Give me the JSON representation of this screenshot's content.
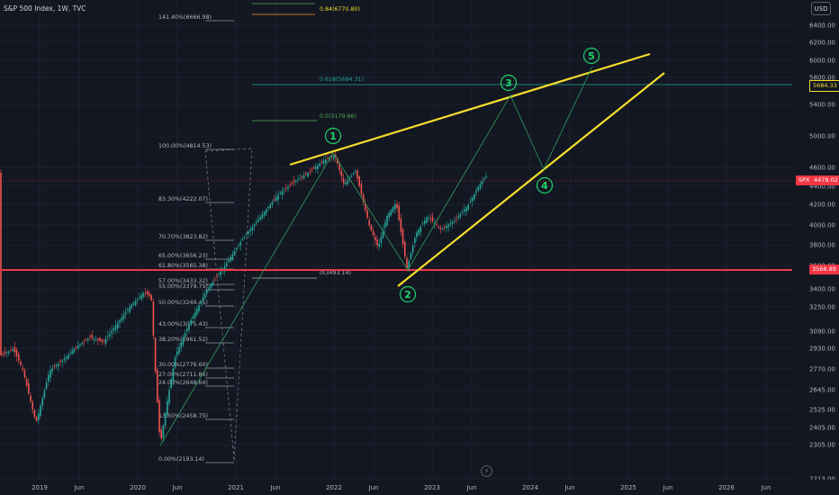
{
  "symbol": "S&P 500 Index, 1W, TVC",
  "currency": "USD",
  "replay_icon": "lightning-icon",
  "price_axis": [
    "6400.00",
    "6200.00",
    "6000.00",
    "5800.00",
    "5600.00",
    "5400.00",
    "5000.00",
    "4600.00",
    "4400.00",
    "4200.00",
    "4000.00",
    "3800.00",
    "3600.00",
    "3400.00",
    "3250.00",
    "3090.00",
    "2930.00",
    "2770.00",
    "2645.00",
    "2525.00",
    "2405.00",
    "2305.00",
    "2213.00"
  ],
  "time_axis": [
    "2019",
    "Jun",
    "2020",
    "Jun",
    "2021",
    "Jun",
    "2022",
    "Jun",
    "2023",
    "Jun",
    "2024",
    "Jun",
    "2025",
    "Jun",
    "2026",
    "Jun"
  ],
  "tags": {
    "fib_0618": "5684.33",
    "spx_label": "SPX",
    "spx_price": "4478.02",
    "hline_price": "3566.89"
  },
  "fib_upper": {
    "l0618": "0.618(5684.31)",
    "l05": "0.5(5179.66)",
    "l084": "0.84(6770.80)",
    "l0": "0(3493.14)"
  },
  "fib_left": {
    "l1414": "141.40%(6666.98)",
    "l100": "100.00%(4814.53)",
    "l833": "83.30%(4222.07)",
    "l707": "70.70%(3823.82)",
    "l650": "65.00%(3656.23)",
    "l618": "61.80%(3565.38)",
    "l570": "57.00%(3433.32)",
    "l550": "55.00%(3379.75)",
    "l500": "50.00%(3249.45)",
    "l430": "43.00%(3075.43)",
    "l382": "38.20%(2961.52)",
    "l300": "30.00%(2776.60)",
    "l270": "27.00%(2711.86)",
    "l240": "24.00%(2648.64)",
    "l135": "13.50%(2458.75)",
    "l0": "0.00%(2193.14)"
  },
  "waves": [
    "1",
    "2",
    "3",
    "4",
    "5"
  ],
  "colors": {
    "background": "#131722",
    "up": "#26a69a",
    "down": "#ef5350",
    "trendline": "#f5dd2c",
    "wave": "#1fd36a",
    "hline": "#f23645"
  }
}
